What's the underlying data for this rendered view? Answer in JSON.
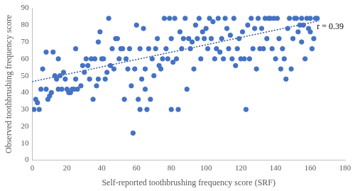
{
  "chart_data": {
    "type": "scatter",
    "x_label": "Self-reported toothbrushing frequency score (SRF)",
    "y_label": "Observed toothbrushing frequency score",
    "annotation": "r = 0.39",
    "color": "#4472c4",
    "marker": "circle",
    "grid": false,
    "xlim": [
      0,
      180
    ],
    "xticks": [
      0,
      20,
      40,
      60,
      80,
      100,
      120,
      140,
      160,
      180
    ],
    "ylim": [
      0,
      90
    ],
    "yticks": [
      0,
      10,
      20,
      30,
      40,
      50,
      60,
      70,
      80,
      90
    ],
    "x": [
      1,
      2,
      3,
      4,
      5,
      6,
      8,
      8,
      9,
      10,
      11,
      12,
      13,
      14,
      15,
      15,
      16,
      17,
      18,
      19,
      20,
      21,
      22,
      23,
      24,
      25,
      25,
      26,
      28,
      29,
      30,
      31,
      32,
      33,
      34,
      35,
      36,
      37,
      38,
      38,
      39,
      40,
      41,
      42,
      43,
      44,
      45,
      46,
      47,
      48,
      49,
      50,
      51,
      52,
      53,
      54,
      55,
      56,
      57,
      58,
      59,
      60,
      61,
      62,
      62,
      63,
      64,
      65,
      65,
      66,
      67,
      68,
      69,
      70,
      71,
      72,
      73,
      74,
      75,
      76,
      77,
      78,
      79,
      80,
      80,
      81,
      82,
      83,
      84,
      85,
      86,
      87,
      88,
      89,
      90,
      91,
      92,
      93,
      94,
      95,
      96,
      97,
      98,
      99,
      100,
      101,
      102,
      103,
      104,
      105,
      106,
      107,
      108,
      109,
      110,
      111,
      112,
      113,
      114,
      115,
      116,
      117,
      118,
      119,
      120,
      121,
      122,
      123,
      124,
      125,
      126,
      127,
      128,
      129,
      130,
      131,
      132,
      133,
      134,
      135,
      136,
      137,
      138,
      139,
      140,
      141,
      142,
      143,
      144,
      145,
      146,
      147,
      148,
      149,
      150,
      151,
      152,
      153,
      154,
      155,
      156,
      157,
      158,
      159,
      160,
      161,
      162,
      163,
      164,
      155,
      160
    ],
    "values": [
      30,
      36,
      34,
      30,
      42,
      54,
      64,
      42,
      36,
      38,
      40,
      64,
      50,
      48,
      42,
      60,
      50,
      42,
      52,
      48,
      42,
      40,
      40,
      42,
      42,
      48,
      66,
      42,
      44,
      56,
      52,
      60,
      56,
      48,
      60,
      36,
      60,
      44,
      48,
      70,
      76,
      60,
      60,
      48,
      52,
      84,
      56,
      66,
      54,
      72,
      72,
      60,
      66,
      66,
      36,
      60,
      54,
      66,
      44,
      16,
      54,
      80,
      36,
      30,
      66,
      48,
      78,
      54,
      42,
      30,
      66,
      36,
      60,
      50,
      66,
      72,
      56,
      54,
      60,
      84,
      66,
      60,
      84,
      30,
      72,
      58,
      84,
      60,
      30,
      76,
      66,
      72,
      84,
      42,
      72,
      66,
      70,
      54,
      80,
      72,
      84,
      60,
      76,
      72,
      78,
      66,
      84,
      72,
      82,
      60,
      66,
      84,
      64,
      72,
      60,
      84,
      78,
      66,
      74,
      60,
      84,
      56,
      66,
      72,
      60,
      76,
      60,
      30,
      80,
      60,
      84,
      66,
      78,
      54,
      84,
      66,
      78,
      66,
      84,
      72,
      84,
      84,
      66,
      84,
      60,
      84,
      72,
      54,
      66,
      60,
      48,
      78,
      84,
      54,
      72,
      84,
      84,
      76,
      80,
      84,
      80,
      60,
      84,
      78,
      84,
      66,
      72,
      84,
      84,
      70,
      76
    ],
    "trend_line": {
      "x": [
        0,
        165
      ],
      "values": [
        46.5,
        82.5
      ],
      "color": "#2f5597",
      "line_style": "dotted"
    }
  }
}
